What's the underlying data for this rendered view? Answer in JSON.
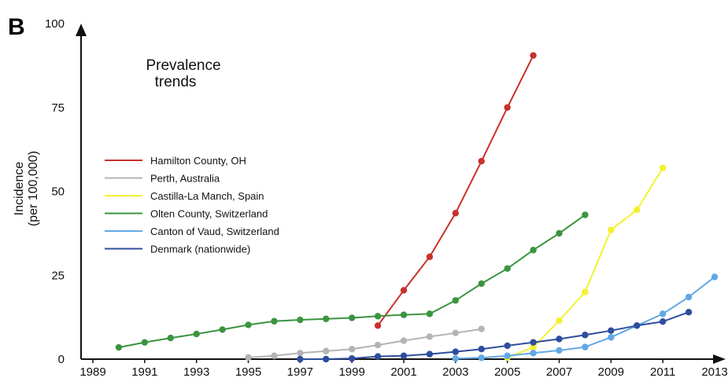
{
  "panel_label": "B",
  "chart_data": {
    "type": "line",
    "title_lines": [
      "Prevalence",
      "trends"
    ],
    "ylabel_lines": [
      "Incidence",
      "(per 100,000)"
    ],
    "xlabel": "",
    "xlim": [
      1989,
      2013
    ],
    "ylim": [
      0,
      100
    ],
    "x_ticks": [
      1989,
      1991,
      1993,
      1995,
      1997,
      1999,
      2001,
      2003,
      2005,
      2007,
      2009,
      2011,
      2013
    ],
    "y_ticks": [
      0,
      25,
      50,
      75,
      100
    ],
    "grid": false,
    "legend_position": "left",
    "series": [
      {
        "name": "Hamilton County, OH",
        "color": "#c8312b",
        "x": [
          2000,
          2001,
          2002,
          2003,
          2004,
          2005,
          2006
        ],
        "y": [
          10,
          20.5,
          30.5,
          43.5,
          59,
          75,
          90.5
        ]
      },
      {
        "name": "Perth, Australia",
        "color": "#b4b4b4",
        "x": [
          1995,
          1996,
          1997,
          1998,
          1999,
          2000,
          2001,
          2002,
          2003,
          2004
        ],
        "y": [
          0.5,
          1,
          1.8,
          2.4,
          3,
          4.2,
          5.5,
          6.7,
          7.8,
          9
        ]
      },
      {
        "name": "Castilla-La Manch, Spain",
        "color": "#f2f230",
        "x": [
          2005,
          2006,
          2007,
          2008,
          2009,
          2010,
          2011
        ],
        "y": [
          0.5,
          3.5,
          11.5,
          20,
          38.5,
          44.5,
          57
        ]
      },
      {
        "name": "Olten County, Switzerland",
        "color": "#3b9440",
        "x": [
          1990,
          1991,
          1992,
          1993,
          1994,
          1995,
          1996,
          1997,
          1998,
          1999,
          2000,
          2001,
          2002,
          2003,
          2004,
          2005,
          2006,
          2007,
          2008
        ],
        "y": [
          3.5,
          5,
          6.3,
          7.5,
          8.8,
          10.2,
          11.3,
          11.7,
          12,
          12.3,
          12.8,
          13.2,
          13.5,
          17.5,
          22.5,
          27,
          32.5,
          37.5,
          43
        ]
      },
      {
        "name": "Canton of Vaud, Switzerland",
        "color": "#62a8e5",
        "x": [
          2003,
          2004,
          2005,
          2006,
          2007,
          2008,
          2009,
          2010,
          2011,
          2012,
          2013
        ],
        "y": [
          0.2,
          0.4,
          1,
          1.8,
          2.6,
          3.6,
          6.5,
          10,
          13.5,
          18.5,
          24.5
        ]
      },
      {
        "name": "Denmark (nationwide)",
        "color": "#2e4d9e",
        "x": [
          1997,
          1998,
          1999,
          2000,
          2001,
          2002,
          2003,
          2004,
          2005,
          2006,
          2007,
          2008,
          2009,
          2010,
          2011,
          2012
        ],
        "y": [
          0,
          0,
          0.2,
          0.8,
          1,
          1.5,
          2.2,
          3,
          4,
          5,
          6,
          7.2,
          8.5,
          10,
          11.2,
          14
        ]
      }
    ]
  }
}
